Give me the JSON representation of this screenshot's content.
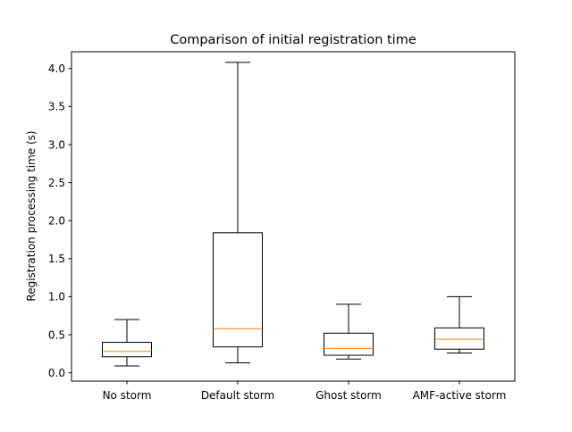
{
  "chart_data": {
    "type": "boxplot",
    "title": "Comparison of initial registration time",
    "xlabel": "",
    "ylabel": "Registration processing time (s)",
    "ylim": [
      -0.11,
      4.22
    ],
    "yticks": [
      "0.0",
      "0.5",
      "1.0",
      "1.5",
      "2.0",
      "2.5",
      "3.0",
      "3.5",
      "4.0"
    ],
    "ytick_values": [
      0.0,
      0.5,
      1.0,
      1.5,
      2.0,
      2.5,
      3.0,
      3.5,
      4.0
    ],
    "grid": false,
    "legend": "none",
    "categories": [
      "No storm",
      "Default storm",
      "Ghost storm",
      "AMF-active storm"
    ],
    "boxes": [
      {
        "whisker_low": 0.09,
        "q1": 0.21,
        "median": 0.28,
        "q3": 0.4,
        "whisker_high": 0.7
      },
      {
        "whisker_low": 0.13,
        "q1": 0.34,
        "median": 0.58,
        "q3": 1.84,
        "whisker_high": 4.08
      },
      {
        "whisker_low": 0.18,
        "q1": 0.23,
        "median": 0.32,
        "q3": 0.52,
        "whisker_high": 0.9
      },
      {
        "whisker_low": 0.26,
        "q1": 0.31,
        "median": 0.44,
        "q3": 0.59,
        "whisker_high": 1.0
      }
    ],
    "colors": {
      "box": "#000000",
      "median": "#ff7f0e",
      "axes": "#000000"
    }
  }
}
